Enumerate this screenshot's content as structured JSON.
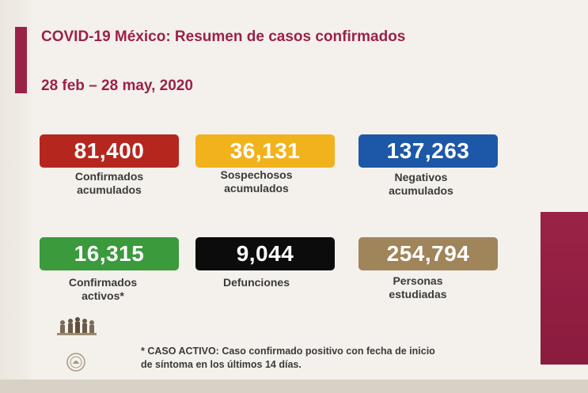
{
  "header": {
    "title": "COVID-19 México: Resumen de casos confirmados",
    "date_range": "28 feb – 28 may, 2020"
  },
  "stats": [
    {
      "value": "81,400",
      "label_line1": "Confirmados",
      "label_line2": "acumulados",
      "color": "#b5261e"
    },
    {
      "value": "36,131",
      "label_line1": "Sospechosos",
      "label_line2": "acumulados",
      "color": "#f2b21c"
    },
    {
      "value": "137,263",
      "label_line1": "Negativos",
      "label_line2": "acumulados",
      "color": "#1d57a8"
    },
    {
      "value": "16,315",
      "label_line1": "Confirmados",
      "label_line2": "activos*",
      "color": "#3a9a3c"
    },
    {
      "value": "9,044",
      "label_line1": "Defunciones",
      "label_line2": "",
      "color": "#0c0c0c"
    },
    {
      "value": "254,794",
      "label_line1": "Personas",
      "label_line2": "estudiadas",
      "color": "#a0845a"
    }
  ],
  "footnote": {
    "line1": "* CASO ACTIVO: Caso confirmado positivo con fecha de inicio",
    "line2": "de síntoma en los últimos 14 días."
  },
  "colors": {
    "brand": "#9b2247",
    "background": "#f4f1ec"
  },
  "icons": {
    "heroes_logo": "heroes-logo-icon",
    "seal": "national-seal-icon"
  }
}
